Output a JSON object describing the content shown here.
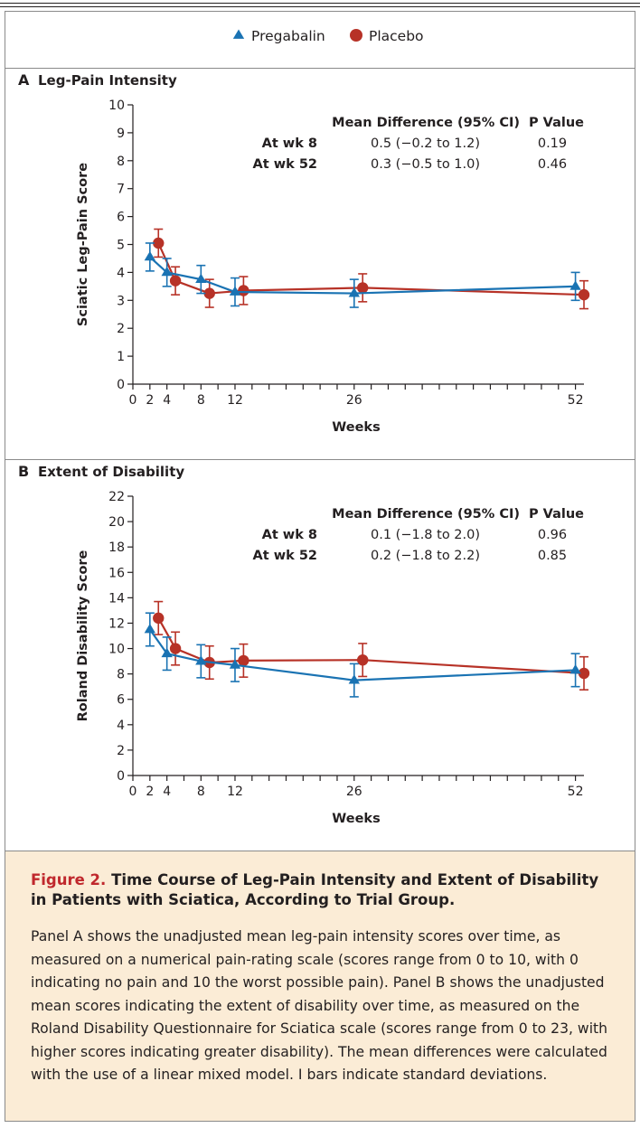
{
  "legend": {
    "items": [
      {
        "label": "Pregabalin",
        "color": "#1a73b3",
        "marker": "triangle"
      },
      {
        "label": "Placebo",
        "color": "#b73227",
        "marker": "circle"
      }
    ]
  },
  "chart_data": [
    {
      "type": "line",
      "panel_letter": "A",
      "title": "Leg-Pain Intensity",
      "xlabel": "Weeks",
      "ylabel": "Sciatic Leg-Pain Score",
      "xlim": [
        0,
        53
      ],
      "ylim": [
        0,
        10
      ],
      "xticks_labeled": [
        "0",
        "2",
        "4",
        "8",
        "12",
        "26",
        "52"
      ],
      "yticks": [
        "0",
        "1",
        "2",
        "3",
        "4",
        "5",
        "6",
        "7",
        "8",
        "9",
        "10"
      ],
      "table": {
        "header_diff": "Mean Difference (95% CI)",
        "header_p": "P Value",
        "rows": [
          {
            "label": "At wk 8",
            "diff": "0.5 (−0.2 to 1.2)",
            "p": "0.19"
          },
          {
            "label": "At wk 52",
            "diff": "0.3 (−0.5 to 1.0)",
            "p": "0.46"
          }
        ]
      },
      "series": [
        {
          "name": "Pregabalin",
          "color": "#1a73b3",
          "marker": "triangle",
          "x": [
            2,
            4,
            8,
            12,
            26,
            52
          ],
          "y": [
            4.55,
            4.0,
            3.75,
            3.3,
            3.25,
            3.5
          ],
          "err": [
            0.5,
            0.5,
            0.5,
            0.5,
            0.5,
            0.5
          ]
        },
        {
          "name": "Placebo",
          "color": "#b73227",
          "marker": "circle",
          "x": [
            3,
            5,
            9,
            13,
            27,
            53
          ],
          "y": [
            5.05,
            3.7,
            3.25,
            3.35,
            3.45,
            3.2
          ],
          "err": [
            0.5,
            0.5,
            0.5,
            0.5,
            0.5,
            0.5
          ]
        }
      ]
    },
    {
      "type": "line",
      "panel_letter": "B",
      "title": "Extent of Disability",
      "xlabel": "Weeks",
      "ylabel": "Roland Disability Score",
      "xlim": [
        0,
        53
      ],
      "ylim": [
        0,
        22
      ],
      "xticks_labeled": [
        "0",
        "2",
        "4",
        "8",
        "12",
        "26",
        "52"
      ],
      "yticks": [
        "0",
        "2",
        "4",
        "6",
        "8",
        "10",
        "12",
        "14",
        "16",
        "18",
        "20",
        "22"
      ],
      "table": {
        "header_diff": "Mean Difference (95% CI)",
        "header_p": "P Value",
        "rows": [
          {
            "label": "At wk 8",
            "diff": "0.1 (−1.8 to 2.0)",
            "p": "0.96"
          },
          {
            "label": "At wk 52",
            "diff": "0.2 (−1.8 to 2.2)",
            "p": "0.85"
          }
        ]
      },
      "series": [
        {
          "name": "Pregabalin",
          "color": "#1a73b3",
          "marker": "triangle",
          "x": [
            2,
            4,
            8,
            12,
            26,
            52
          ],
          "y": [
            11.5,
            9.6,
            9.0,
            8.7,
            7.5,
            8.3
          ],
          "err": [
            1.3,
            1.3,
            1.3,
            1.3,
            1.3,
            1.3
          ]
        },
        {
          "name": "Placebo",
          "color": "#b73227",
          "marker": "circle",
          "x": [
            3,
            5,
            9,
            13,
            27,
            53
          ],
          "y": [
            12.4,
            10.0,
            8.9,
            9.05,
            9.1,
            8.05
          ],
          "err": [
            1.3,
            1.3,
            1.3,
            1.3,
            1.3,
            1.3
          ]
        }
      ]
    }
  ],
  "caption": {
    "figure_label": "Figure 2.",
    "title": "Time Course of Leg-Pain Intensity and Extent of Disability in Patients with Sciatica, According to Trial Group.",
    "body": "Panel A shows the unadjusted mean leg-pain intensity scores over time, as measured on a numerical pain-rating scale (scores range from 0 to 10, with 0 indicating no pain and 10 the worst possible pain). Panel B shows the unadjusted mean scores indicating the extent of disability over time, as measured on the Roland Disability Questionnaire for Sciatica scale (scores range from 0 to 23, with higher scores indicating greater disability). The mean differences were calculated with the use of a linear mixed model. I bars indicate standard deviations."
  }
}
